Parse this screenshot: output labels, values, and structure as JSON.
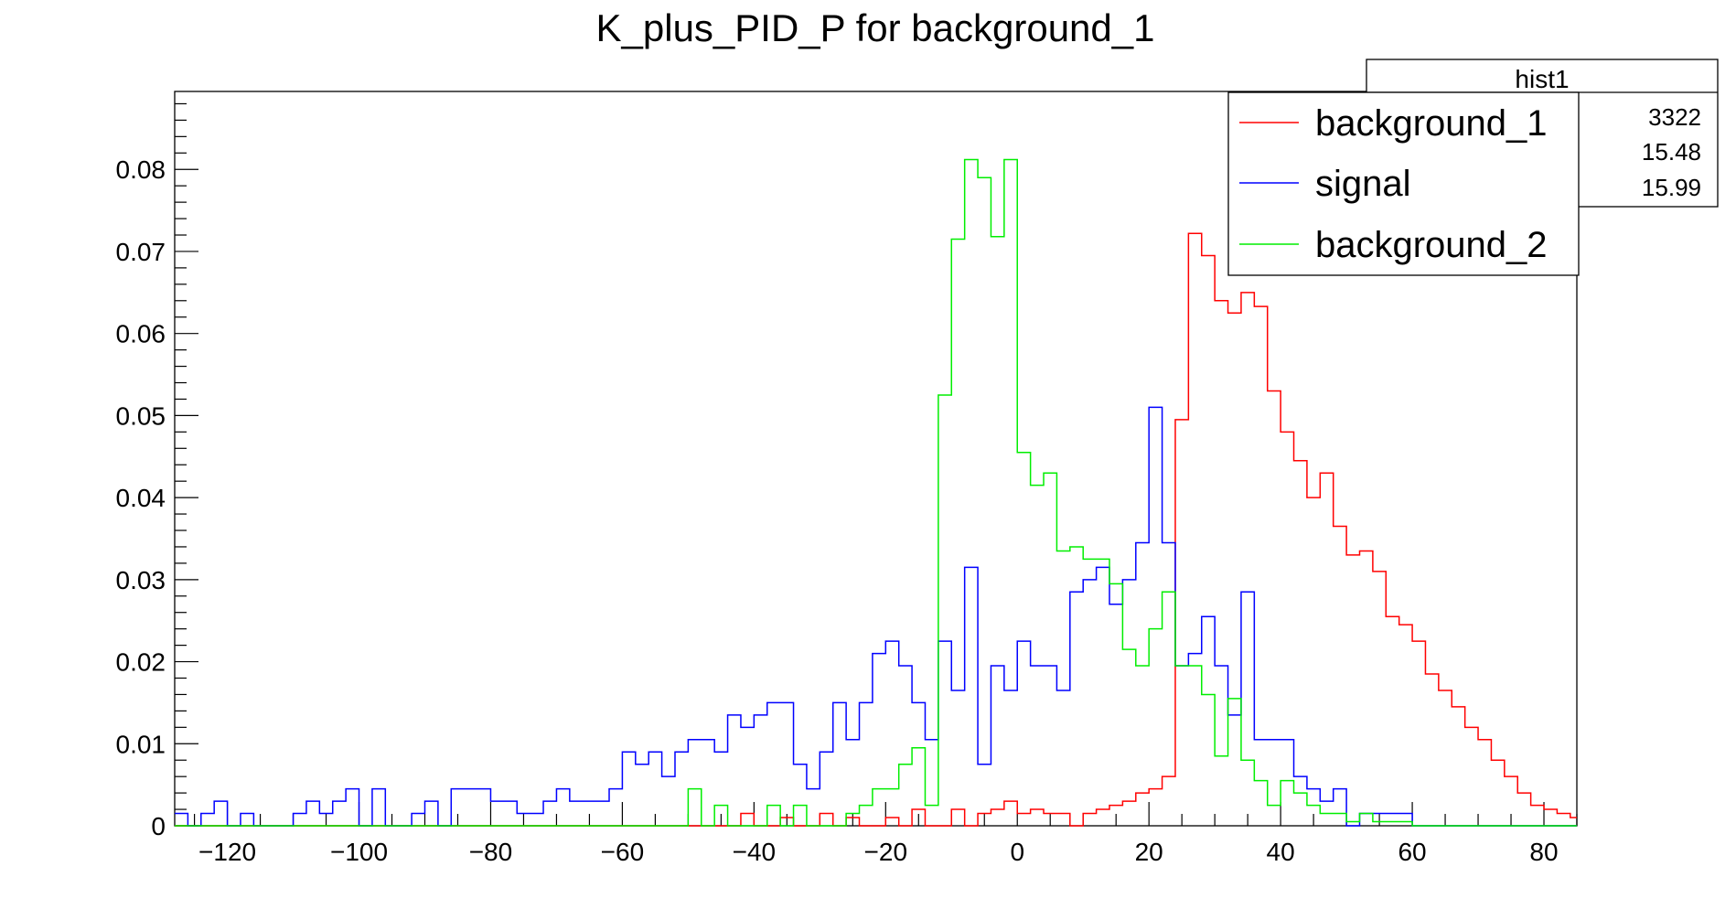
{
  "chart_data": {
    "type": "histogram",
    "title": "K_plus_PID_P for background_1",
    "xlabel": "",
    "ylabel": "",
    "xlim": [
      -128,
      85
    ],
    "ylim": [
      0,
      0.0895
    ],
    "x_ticks": [
      -120,
      -100,
      -80,
      -60,
      -40,
      -20,
      0,
      20,
      40,
      60,
      80
    ],
    "x_tick_labels": [
      "−120",
      "−100",
      "−80",
      "−60",
      "−40",
      "−20",
      "0",
      "20",
      "40",
      "60",
      "80"
    ],
    "y_ticks": [
      0,
      0.01,
      0.02,
      0.03,
      0.04,
      0.05,
      0.06,
      0.07,
      0.08
    ],
    "y_tick_labels": [
      "0",
      "0.01",
      "0.02",
      "0.03",
      "0.04",
      "0.05",
      "0.06",
      "0.07",
      "0.08"
    ],
    "bin_start": -128,
    "bin_width": 2,
    "series": [
      {
        "name": "background_1",
        "color": "#ff0000",
        "values": [
          0,
          0,
          0,
          0,
          0,
          0,
          0,
          0,
          0,
          0,
          0,
          0,
          0,
          0,
          0,
          0,
          0,
          0,
          0,
          0,
          0,
          0,
          0,
          0,
          0,
          0,
          0,
          0,
          0,
          0,
          0,
          0,
          0,
          0,
          0,
          0,
          0,
          0,
          0,
          0,
          0,
          0,
          0,
          0.0015,
          0,
          0,
          0.001,
          0,
          0,
          0.0015,
          0,
          0.001,
          0,
          0,
          0.001,
          0,
          0.002,
          0,
          0,
          0.002,
          0,
          0.0015,
          0.002,
          0.003,
          0.0015,
          0.002,
          0.0015,
          0.0015,
          0,
          0.0015,
          0.002,
          0.0025,
          0.003,
          0.004,
          0.0045,
          0.006,
          0.0495,
          0.0722,
          0.0695,
          0.064,
          0.0625,
          0.065,
          0.0633,
          0.053,
          0.048,
          0.0445,
          0.04,
          0.043,
          0.0365,
          0.033,
          0.0335,
          0.031,
          0.0255,
          0.0245,
          0.0225,
          0.0185,
          0.0165,
          0.0145,
          0.012,
          0.0105,
          0.008,
          0.006,
          0.004,
          0.0025,
          0.002,
          0.0015,
          0.001,
          0,
          0,
          0.0015,
          0.001,
          0.0005,
          0,
          0,
          0,
          0,
          0,
          0,
          0,
          0,
          0,
          0,
          0,
          0,
          0,
          0,
          0,
          0,
          0,
          0,
          0,
          0,
          0,
          0,
          0,
          0,
          0,
          0,
          0,
          0,
          0,
          0,
          0,
          0,
          0,
          0,
          0,
          0,
          0,
          0,
          0,
          0,
          0,
          0,
          0,
          0,
          0,
          0,
          0,
          0,
          0,
          0
        ]
      },
      {
        "name": "signal",
        "color": "#0000ff",
        "values": [
          0.0015,
          0,
          0.0015,
          0.003,
          0,
          0.0015,
          0,
          0,
          0,
          0.0015,
          0.003,
          0.0015,
          0.003,
          0.0045,
          0,
          0.0045,
          0,
          0,
          0.0015,
          0.003,
          0,
          0.0045,
          0.0045,
          0.0045,
          0.003,
          0.003,
          0.0015,
          0.0015,
          0.003,
          0.0045,
          0.003,
          0.003,
          0.003,
          0.0045,
          0.009,
          0.0075,
          0.009,
          0.006,
          0.009,
          0.0105,
          0.0105,
          0.009,
          0.0135,
          0.012,
          0.0135,
          0.015,
          0.015,
          0.0075,
          0.0045,
          0.009,
          0.015,
          0.0105,
          0.015,
          0.021,
          0.0225,
          0.0195,
          0.015,
          0.0105,
          0.0225,
          0.0165,
          0.0315,
          0.0075,
          0.0195,
          0.0165,
          0.0225,
          0.0195,
          0.0195,
          0.0165,
          0.0285,
          0.03,
          0.0315,
          0.027,
          0.03,
          0.0345,
          0.051,
          0.0345,
          0.0195,
          0.021,
          0.0255,
          0.0195,
          0.0135,
          0.0285,
          0.0105,
          0.0105,
          0.0105,
          0.006,
          0.0045,
          0.003,
          0.0045,
          0,
          0.0015,
          0.0015,
          0.0015,
          0.0015,
          0,
          0,
          0,
          0,
          0,
          0,
          0,
          0,
          0,
          0,
          0,
          0,
          0,
          0,
          0,
          0,
          0,
          0,
          0,
          0,
          0,
          0,
          0,
          0,
          0,
          0,
          0,
          0,
          0,
          0,
          0,
          0,
          0,
          0,
          0,
          0,
          0,
          0,
          0,
          0,
          0,
          0,
          0,
          0,
          0,
          0,
          0,
          0,
          0,
          0,
          0,
          0,
          0,
          0,
          0
        ]
      },
      {
        "name": "background_2",
        "color": "#00ee00",
        "values": [
          0,
          0,
          0,
          0,
          0,
          0,
          0,
          0,
          0,
          0,
          0,
          0,
          0,
          0,
          0,
          0,
          0,
          0,
          0,
          0,
          0,
          0,
          0,
          0,
          0,
          0,
          0,
          0,
          0,
          0,
          0,
          0,
          0,
          0,
          0,
          0,
          0,
          0,
          0,
          0.0045,
          0,
          0.0025,
          0,
          0,
          0,
          0.0025,
          0,
          0.0025,
          0,
          0,
          0,
          0.0015,
          0.0025,
          0.0045,
          0.0045,
          0.0075,
          0.0095,
          0.0025,
          0.0525,
          0.0715,
          0.0812,
          0.079,
          0.0718,
          0.0812,
          0.0455,
          0.0415,
          0.043,
          0.0335,
          0.034,
          0.0325,
          0.0325,
          0.0295,
          0.0215,
          0.0195,
          0.024,
          0.0285,
          0.0195,
          0.0195,
          0.016,
          0.0085,
          0.0155,
          0.008,
          0.0055,
          0.0025,
          0.0055,
          0.004,
          0.0025,
          0.0015,
          0.0015,
          0.0005,
          0.0015,
          0.0005,
          0.0005,
          0.0005,
          0,
          0,
          0,
          0,
          0,
          0,
          0,
          0,
          0,
          0,
          0,
          0,
          0,
          0,
          0,
          0,
          0,
          0,
          0,
          0,
          0,
          0,
          0,
          0,
          0,
          0,
          0,
          0,
          0,
          0,
          0,
          0,
          0,
          0,
          0,
          0,
          0,
          0,
          0,
          0,
          0,
          0,
          0,
          0,
          0,
          0,
          0,
          0,
          0,
          0,
          0,
          0,
          0,
          0,
          0,
          0,
          0
        ]
      }
    ],
    "legend": {
      "placement": "top-right",
      "entries": [
        "background_1",
        "signal",
        "background_2"
      ]
    },
    "stats_box": {
      "title": "hist1",
      "values": [
        "3322",
        "15.48",
        "15.99"
      ]
    },
    "grid": false
  }
}
